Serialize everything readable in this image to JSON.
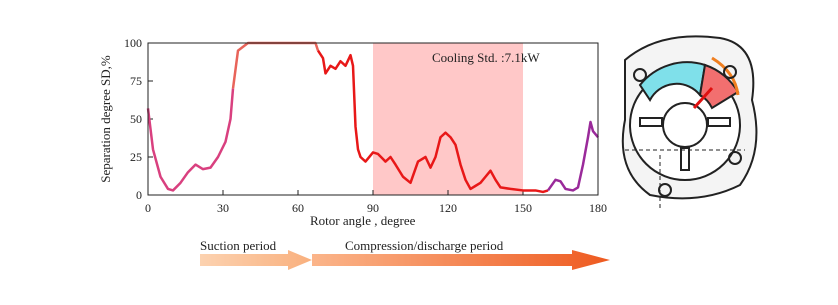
{
  "chart_data": {
    "type": "line",
    "annotation": "Cooling Std. :7.1kW",
    "x_label": "Rotor angle  , degree",
    "y_label": "Separation degree SD,%",
    "xlim": [
      0,
      180
    ],
    "xticks": [
      0,
      30,
      60,
      90,
      120,
      150,
      180
    ],
    "ylim": [
      0,
      100
    ],
    "yticks": [
      0,
      25,
      50,
      75,
      100
    ],
    "shaded_region": {
      "x": [
        90,
        150
      ],
      "color": "#ffc8c8"
    },
    "series": [
      {
        "color": "#d9407f",
        "x": [
          0,
          2,
          5,
          8,
          10,
          13,
          16,
          19,
          22,
          25,
          28,
          31,
          33,
          34
        ],
        "values": [
          57,
          30,
          12,
          4,
          3,
          8,
          15,
          20,
          17,
          18,
          25,
          35,
          50,
          70
        ]
      },
      {
        "color": "#e8645a",
        "x": [
          34,
          36,
          40,
          50,
          60,
          67,
          68
        ],
        "values": [
          70,
          95,
          100,
          100,
          100,
          100,
          95
        ]
      },
      {
        "color": "#e81818",
        "x": [
          68,
          70,
          71,
          73,
          75,
          77,
          79,
          81,
          82,
          83,
          84,
          85,
          87,
          90,
          92,
          95,
          97,
          99,
          102,
          105,
          108,
          111,
          113,
          115,
          117,
          119,
          121,
          123,
          125,
          127,
          129,
          131,
          133,
          135,
          137,
          139,
          141,
          145,
          150,
          155,
          158,
          160
        ],
        "values": [
          95,
          90,
          80,
          85,
          83,
          88,
          85,
          92,
          85,
          45,
          30,
          25,
          22,
          28,
          27,
          22,
          25,
          20,
          12,
          8,
          22,
          25,
          18,
          25,
          38,
          41,
          38,
          33,
          20,
          10,
          4,
          6,
          8,
          12,
          16,
          10,
          5,
          4,
          3,
          3,
          2,
          3
        ]
      },
      {
        "color": "#9a2a9a",
        "x": [
          160,
          163,
          165,
          167,
          170,
          172,
          174,
          176,
          177,
          178,
          180
        ],
        "values": [
          3,
          10,
          9,
          4,
          3,
          5,
          20,
          38,
          48,
          42,
          38
        ]
      }
    ],
    "periods": [
      "Suction period",
      "Compression/discharge period"
    ]
  }
}
